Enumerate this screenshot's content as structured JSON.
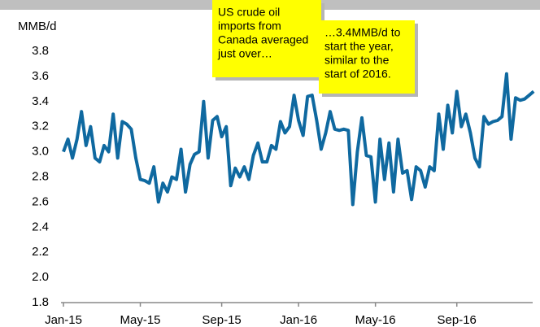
{
  "chart_data": {
    "type": "line",
    "y_axis_label": "MMB/d",
    "color": "#0f69a0",
    "ylim": [
      1.8,
      3.8
    ],
    "yticks": [
      1.8,
      {
        "value": 2,
        "label": "2.0"
      },
      2.2,
      2.4,
      2.6,
      2.8,
      {
        "value": 3,
        "label": "3.0"
      },
      3.2,
      3.4,
      3.6,
      3.8
    ],
    "categories": [
      "Jan-15",
      null,
      null,
      null,
      null,
      null,
      null,
      null,
      null,
      null,
      null,
      null,
      null,
      null,
      null,
      null,
      null,
      "May-15",
      null,
      null,
      null,
      null,
      null,
      null,
      null,
      null,
      null,
      null,
      null,
      null,
      null,
      null,
      null,
      null,
      null,
      "Sep-15",
      null,
      null,
      null,
      null,
      null,
      null,
      null,
      null,
      null,
      null,
      null,
      null,
      null,
      null,
      null,
      null,
      "Jan-16",
      null,
      null,
      null,
      null,
      null,
      null,
      null,
      null,
      null,
      null,
      null,
      null,
      null,
      null,
      null,
      null,
      "May-16",
      null,
      null,
      null,
      null,
      null,
      null,
      null,
      null,
      null,
      null,
      null,
      null,
      null,
      null,
      null,
      null,
      null,
      "Sep-16",
      null,
      null,
      null,
      null,
      null,
      null,
      null,
      null,
      null,
      null,
      null,
      null,
      null,
      null,
      null,
      null,
      null
    ],
    "values": [
      3.0,
      3.1,
      2.95,
      3.1,
      3.32,
      3.05,
      3.2,
      2.95,
      2.92,
      3.05,
      3.0,
      3.3,
      2.95,
      3.24,
      3.22,
      3.18,
      2.95,
      2.78,
      2.77,
      2.75,
      2.88,
      2.6,
      2.75,
      2.68,
      2.8,
      2.78,
      3.02,
      2.68,
      2.9,
      2.98,
      3.0,
      3.4,
      2.95,
      3.25,
      3.28,
      3.12,
      3.2,
      2.73,
      2.87,
      2.8,
      2.88,
      2.78,
      2.97,
      3.07,
      2.92,
      2.92,
      3.05,
      3.02,
      3.24,
      3.15,
      3.2,
      3.45,
      3.25,
      3.13,
      3.44,
      3.45,
      3.25,
      3.02,
      3.15,
      3.32,
      3.18,
      3.17,
      3.18,
      3.17,
      2.58,
      3.0,
      3.27,
      2.97,
      2.96,
      2.6,
      3.1,
      2.78,
      3.07,
      2.68,
      3.1,
      2.83,
      2.85,
      2.62,
      2.88,
      2.85,
      2.72,
      2.88,
      2.85,
      3.3,
      3.02,
      3.37,
      3.15,
      3.48,
      3.2,
      3.3,
      3.15,
      2.95,
      2.88,
      3.28,
      3.22,
      3.24,
      3.25,
      3.28,
      3.62,
      3.1,
      3.43,
      3.41,
      3.42,
      3.45,
      3.48
    ],
    "annotations": [
      {
        "lines": [
          "US crude oil",
          "imports from",
          "Canada averaged",
          "just over…"
        ]
      },
      {
        "lines": [
          "…3.4MMB/d to",
          "start the year,",
          "similar to the",
          "start of 2016."
        ]
      }
    ]
  }
}
